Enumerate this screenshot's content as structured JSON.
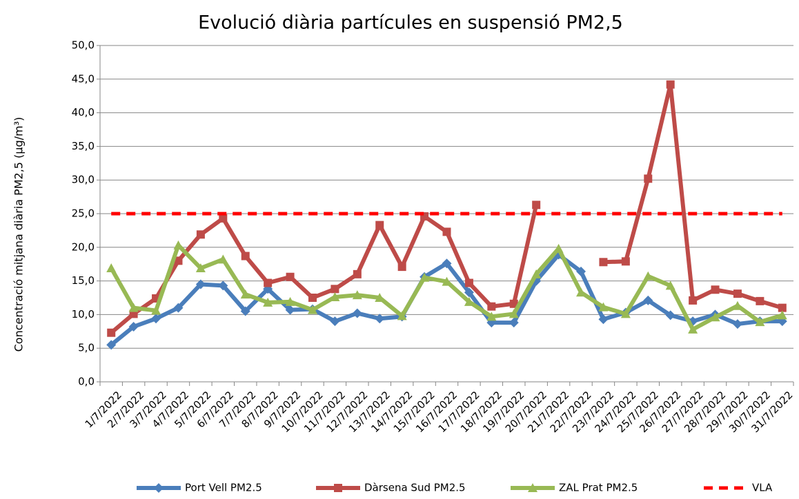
{
  "chart_data": {
    "type": "line",
    "title": "Evolució diària partícules en suspensió  PM2,5",
    "y_label": "Concentració mitjana diària PM2,5 (µg/m³)",
    "categories": [
      "1/7/2022",
      "2/7/2022",
      "3/7/2022",
      "4/7/2022",
      "5/7/2022",
      "6/7/2022",
      "7/7/2022",
      "8/7/2022",
      "9/7/2022",
      "10/7/2022",
      "11/7/2022",
      "12/7/2022",
      "13/7/2022",
      "14/7/2022",
      "15/7/2022",
      "16/7/2022",
      "17/7/2022",
      "18/7/2022",
      "19/7/2022",
      "20/7/2022",
      "21/7/2022",
      "22/7/2022",
      "23/7/2022",
      "24/7/2022",
      "25/7/2022",
      "26/7/2022",
      "27/7/2022",
      "28/7/2022",
      "29/7/2022",
      "30/7/2022",
      "31/7/2022"
    ],
    "series": [
      {
        "name": "Port Vell PM2.5",
        "color": "#4a7ebb",
        "marker": "diamond",
        "values": [
          5.5,
          8.2,
          9.4,
          11.0,
          14.5,
          14.3,
          10.5,
          13.8,
          10.7,
          10.8,
          9.0,
          10.2,
          9.4,
          9.7,
          15.6,
          17.6,
          13.3,
          8.8,
          8.8,
          15.0,
          18.9,
          16.4,
          9.3,
          10.3,
          12.1,
          9.9,
          9.0,
          10.0,
          8.6,
          9.0,
          9.0
        ]
      },
      {
        "name": "Dàrsena Sud PM2.5",
        "color": "#be4b48",
        "marker": "square",
        "values": [
          7.3,
          10.1,
          12.4,
          18.0,
          21.9,
          24.3,
          18.7,
          14.7,
          15.6,
          12.5,
          13.8,
          16.0,
          23.3,
          17.1,
          24.6,
          22.3,
          14.7,
          11.2,
          11.6,
          26.3,
          null,
          null,
          17.8,
          17.9,
          30.2,
          44.2,
          12.1,
          13.7,
          13.1,
          12.0,
          11.0
        ]
      },
      {
        "name": "ZAL Prat PM2.5",
        "color": "#98b954",
        "marker": "triangle",
        "values": [
          16.9,
          11.0,
          10.6,
          20.3,
          16.9,
          18.2,
          13.0,
          11.8,
          11.9,
          10.7,
          12.6,
          12.9,
          12.5,
          9.8,
          15.5,
          14.9,
          11.9,
          9.7,
          10.1,
          16.0,
          19.8,
          13.3,
          11.1,
          10.1,
          15.7,
          14.3,
          7.8,
          9.6,
          11.3,
          8.9,
          9.9
        ]
      },
      {
        "name": "VLA",
        "color": "#ff0000",
        "dashed": true,
        "values": [
          25,
          25,
          25,
          25,
          25,
          25,
          25,
          25,
          25,
          25,
          25,
          25,
          25,
          25,
          25,
          25,
          25,
          25,
          25,
          25,
          25,
          25,
          25,
          25,
          25,
          25,
          25,
          25,
          25,
          25,
          25
        ]
      }
    ],
    "ylim": [
      0,
      50
    ],
    "yticks": [
      {
        "value": 0,
        "label": "0,0"
      },
      {
        "value": 5,
        "label": "5,0"
      },
      {
        "value": 10,
        "label": "10,0"
      },
      {
        "value": 15,
        "label": "15,0"
      },
      {
        "value": 20,
        "label": "20,0"
      },
      {
        "value": 25,
        "label": "25,0"
      },
      {
        "value": 30,
        "label": "30,0"
      },
      {
        "value": 35,
        "label": "35,0"
      },
      {
        "value": 40,
        "label": "40,0"
      },
      {
        "value": 45,
        "label": "45,0"
      },
      {
        "value": 50,
        "label": "50,0"
      }
    ],
    "grid": true,
    "legend": "bottom"
  }
}
